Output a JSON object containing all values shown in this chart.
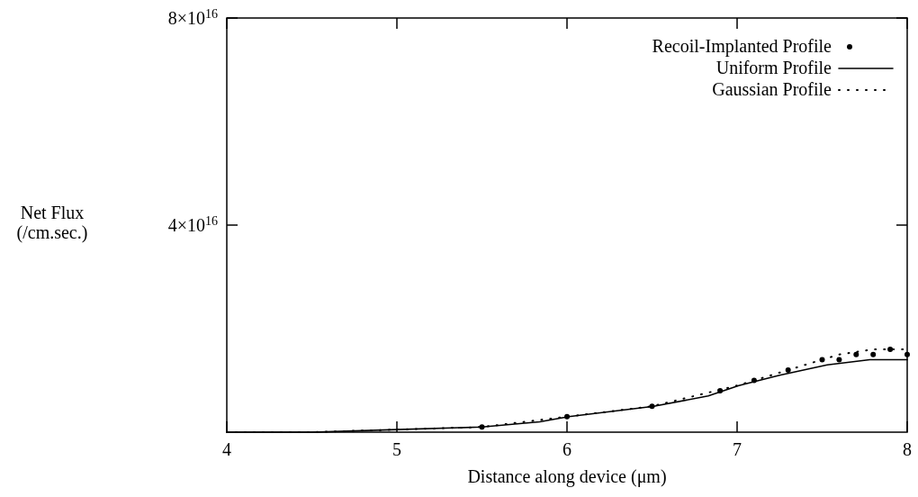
{
  "chart_data": {
    "type": "line",
    "xlabel": "Distance along device (μm)",
    "ylabel": "Net Flux\n(/cm.sec.)",
    "xlim": [
      4,
      8
    ],
    "ylim": [
      0,
      8e+16
    ],
    "xticks": [
      4,
      5,
      6,
      7,
      8
    ],
    "yticks": [
      {
        "value": 4e+16,
        "label": "4×10$^{16}$"
      },
      {
        "value": 8e+16,
        "label": "8×10$^{16}$"
      }
    ],
    "grid": false,
    "legend": "top right",
    "series": [
      {
        "name": "Recoil-Implanted Profile",
        "type": "scatter",
        "marker": "circle",
        "color": "#000000",
        "x": [
          5.5,
          6,
          6.5,
          6.9,
          7.1,
          7.3,
          7.5,
          7.6,
          7.7,
          7.8,
          7.9,
          8
        ],
        "values": [
          1000000000000000.0,
          3000000000000000.0,
          5000000000000000.0,
          8000000000000000.0,
          1e+16,
          1.2e+16,
          1.4e+16,
          1.4e+16,
          1.5e+16,
          1.5e+16,
          1.6e+16,
          1.5e+16
        ]
      },
      {
        "name": "Uniform Profile",
        "color": "#000000",
        "line_style": "solid",
        "x": [
          4,
          4.5,
          5,
          5.5,
          5.84,
          6.01,
          6.51,
          6.83,
          7.01,
          7.25,
          7.53,
          7.78,
          8
        ],
        "values": [
          0,
          0,
          500000000000000.0,
          1000000000000000.0,
          2000000000000000.0,
          3000000000000000.0,
          5000000000000000.0,
          7000000000000000.0,
          9000000000000000.0,
          1.1e+16,
          1.3e+16,
          1.4e+16,
          1.4e+16
        ]
      },
      {
        "name": "Gaussian Profile",
        "color": "#000000",
        "line_style": "dotted",
        "x": [
          4,
          4.5,
          5,
          5.5,
          6,
          6.5,
          7,
          7.2,
          7.4,
          7.6,
          7.8,
          7.9,
          8
        ],
        "values": [
          0,
          0,
          500000000000000.0,
          1000000000000000.0,
          3000000000000000.0,
          5000000000000000.0,
          9000000000000000.0,
          1.1e+16,
          1.3e+16,
          1.5e+16,
          1.6e+16,
          1.6e+16,
          1.6e+16
        ]
      }
    ]
  }
}
